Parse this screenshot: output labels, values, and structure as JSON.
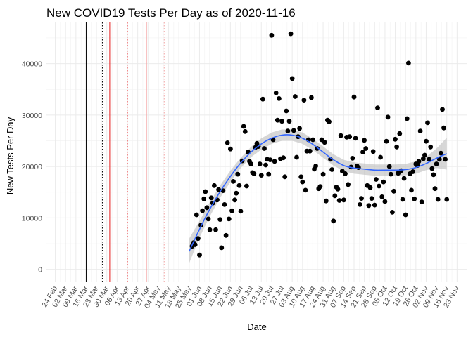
{
  "chart_data": {
    "type": "scatter",
    "title": "New COVID19 Tests Per Day as of 2020-11-16",
    "xlabel": "Date",
    "ylabel": "New Tests Per Day",
    "xlim": [
      "2020-02-18",
      "2020-11-30"
    ],
    "ylim": [
      -2500,
      48000
    ],
    "grid": true,
    "x_ticks": [
      "2020-02-24",
      "2020-03-02",
      "2020-03-09",
      "2020-03-16",
      "2020-03-23",
      "2020-03-30",
      "2020-04-06",
      "2020-04-13",
      "2020-04-20",
      "2020-04-27",
      "2020-05-04",
      "2020-05-11",
      "2020-05-18",
      "2020-05-25",
      "2020-06-01",
      "2020-06-08",
      "2020-06-15",
      "2020-06-22",
      "2020-06-29",
      "2020-07-06",
      "2020-07-13",
      "2020-07-20",
      "2020-07-27",
      "2020-08-03",
      "2020-08-10",
      "2020-08-17",
      "2020-08-24",
      "2020-08-31",
      "2020-09-07",
      "2020-09-14",
      "2020-09-21",
      "2020-09-28",
      "2020-10-05",
      "2020-10-12",
      "2020-10-19",
      "2020-10-26",
      "2020-11-02",
      "2020-11-09",
      "2020-11-16",
      "2020-11-23"
    ],
    "x_tick_labels": [
      "24 Feb",
      "02 Mar",
      "09 Mar",
      "16 Mar",
      "23 Mar",
      "30 Mar",
      "06 Apr",
      "13 Apr",
      "20 Apr",
      "27 Apr",
      "04 May",
      "11 May",
      "18 May",
      "25 May",
      "01 Jun",
      "08 Jun",
      "15 Jun",
      "22 Jun",
      "29 Jun",
      "06 Jul",
      "13 Jul",
      "20 Jul",
      "27 Jul",
      "03 Aug",
      "10 Aug",
      "17 Aug",
      "24 Aug",
      "31 Aug",
      "07 Sep",
      "14 Sep",
      "21 Sep",
      "28 Sep",
      "05 Oct",
      "12 Oct",
      "19 Oct",
      "26 Oct",
      "02 Nov",
      "09 Nov",
      "16 Nov",
      "23 Nov"
    ],
    "y_ticks": [
      0,
      10000,
      20000,
      30000,
      40000
    ],
    "y_tick_labels": [
      "0",
      "10000",
      "20000",
      "30000",
      "40000"
    ],
    "vlines": [
      {
        "date": "2020-03-16",
        "color": "#000000",
        "style": "solid"
      },
      {
        "date": "2020-03-27",
        "color": "#000000",
        "style": "dotted"
      },
      {
        "date": "2020-04-01",
        "color": "#e41a1c",
        "style": "solid"
      },
      {
        "date": "2020-04-13",
        "color": "#e41a1c",
        "style": "dotted"
      },
      {
        "date": "2020-04-26",
        "color": "#f4a6a6",
        "style": "solid"
      },
      {
        "date": "2020-05-08",
        "color": "#f4a6a6",
        "style": "dotted"
      }
    ],
    "series": [
      {
        "points": [
          [
            "2020-05-27",
            4500
          ],
          [
            "2020-05-28",
            5200
          ],
          [
            "2020-05-29",
            4800
          ],
          [
            "2020-05-30",
            10600
          ],
          [
            "2020-05-31",
            6000
          ],
          [
            "2020-06-01",
            2800
          ],
          [
            "2020-06-02",
            8600
          ],
          [
            "2020-06-03",
            11400
          ],
          [
            "2020-06-04",
            13700
          ],
          [
            "2020-06-05",
            15100
          ],
          [
            "2020-06-06",
            12000
          ],
          [
            "2020-06-07",
            9800
          ],
          [
            "2020-06-08",
            7700
          ],
          [
            "2020-06-09",
            13900
          ],
          [
            "2020-06-10",
            12900
          ],
          [
            "2020-06-11",
            16300
          ],
          [
            "2020-06-12",
            7700
          ],
          [
            "2020-06-13",
            13500
          ],
          [
            "2020-06-14",
            15500
          ],
          [
            "2020-06-15",
            9700
          ],
          [
            "2020-06-16",
            4200
          ],
          [
            "2020-06-17",
            15300
          ],
          [
            "2020-06-18",
            12600
          ],
          [
            "2020-06-19",
            6600
          ],
          [
            "2020-06-20",
            24600
          ],
          [
            "2020-06-21",
            9800
          ],
          [
            "2020-06-22",
            23400
          ],
          [
            "2020-06-23",
            11400
          ],
          [
            "2020-06-24",
            17100
          ],
          [
            "2020-06-25",
            13500
          ],
          [
            "2020-06-26",
            14800
          ],
          [
            "2020-06-27",
            18500
          ],
          [
            "2020-06-28",
            16300
          ],
          [
            "2020-06-29",
            11300
          ],
          [
            "2020-06-30",
            21100
          ],
          [
            "2020-07-01",
            27800
          ],
          [
            "2020-07-02",
            26800
          ],
          [
            "2020-07-03",
            16200
          ],
          [
            "2020-07-04",
            22800
          ],
          [
            "2020-07-05",
            21000
          ],
          [
            "2020-07-06",
            20500
          ],
          [
            "2020-07-07",
            18800
          ],
          [
            "2020-07-08",
            18600
          ],
          [
            "2020-07-09",
            23700
          ],
          [
            "2020-07-10",
            24500
          ],
          [
            "2020-07-11",
            23900
          ],
          [
            "2020-07-12",
            20500
          ],
          [
            "2020-07-13",
            18300
          ],
          [
            "2020-07-14",
            33100
          ],
          [
            "2020-07-15",
            23500
          ],
          [
            "2020-07-16",
            20300
          ],
          [
            "2020-07-17",
            21400
          ],
          [
            "2020-07-18",
            18500
          ],
          [
            "2020-07-19",
            21300
          ],
          [
            "2020-07-20",
            45500
          ],
          [
            "2020-07-21",
            25200
          ],
          [
            "2020-07-22",
            21000
          ],
          [
            "2020-07-23",
            34300
          ],
          [
            "2020-07-24",
            29000
          ],
          [
            "2020-07-25",
            33200
          ],
          [
            "2020-07-26",
            21500
          ],
          [
            "2020-07-27",
            28800
          ],
          [
            "2020-07-28",
            21700
          ],
          [
            "2020-07-29",
            18000
          ],
          [
            "2020-07-30",
            30800
          ],
          [
            "2020-07-31",
            26900
          ],
          [
            "2020-08-01",
            28800
          ],
          [
            "2020-08-02",
            45800
          ],
          [
            "2020-08-03",
            37100
          ],
          [
            "2020-08-04",
            27000
          ],
          [
            "2020-08-05",
            33600
          ],
          [
            "2020-08-06",
            21800
          ],
          [
            "2020-08-07",
            25800
          ],
          [
            "2020-08-08",
            27400
          ],
          [
            "2020-08-09",
            18000
          ],
          [
            "2020-08-10",
            17000
          ],
          [
            "2020-08-11",
            32900
          ],
          [
            "2020-08-12",
            15400
          ],
          [
            "2020-08-13",
            23000
          ],
          [
            "2020-08-14",
            25200
          ],
          [
            "2020-08-15",
            23000
          ],
          [
            "2020-08-16",
            33400
          ],
          [
            "2020-08-17",
            25200
          ],
          [
            "2020-08-18",
            19500
          ],
          [
            "2020-08-19",
            20100
          ],
          [
            "2020-08-20",
            23500
          ],
          [
            "2020-08-21",
            15700
          ],
          [
            "2020-08-22",
            16100
          ],
          [
            "2020-08-23",
            25200
          ],
          [
            "2020-08-24",
            18500
          ],
          [
            "2020-08-25",
            24700
          ],
          [
            "2020-08-26",
            13300
          ],
          [
            "2020-08-27",
            29000
          ],
          [
            "2020-08-28",
            28700
          ],
          [
            "2020-08-29",
            21400
          ],
          [
            "2020-08-30",
            19400
          ],
          [
            "2020-08-31",
            9400
          ],
          [
            "2020-09-01",
            14300
          ],
          [
            "2020-09-02",
            16000
          ],
          [
            "2020-09-03",
            15600
          ],
          [
            "2020-09-04",
            13400
          ],
          [
            "2020-09-05",
            26000
          ],
          [
            "2020-09-06",
            19100
          ],
          [
            "2020-09-07",
            13500
          ],
          [
            "2020-09-08",
            18600
          ],
          [
            "2020-09-09",
            25700
          ],
          [
            "2020-09-10",
            16500
          ],
          [
            "2020-09-11",
            25800
          ],
          [
            "2020-09-12",
            19900
          ],
          [
            "2020-09-13",
            21600
          ],
          [
            "2020-09-14",
            33500
          ],
          [
            "2020-09-15",
            25500
          ],
          [
            "2020-09-16",
            20100
          ],
          [
            "2020-09-17",
            19800
          ],
          [
            "2020-09-18",
            12600
          ],
          [
            "2020-09-19",
            13800
          ],
          [
            "2020-09-20",
            22800
          ],
          [
            "2020-09-21",
            25100
          ],
          [
            "2020-09-22",
            23500
          ],
          [
            "2020-09-23",
            16300
          ],
          [
            "2020-09-24",
            12400
          ],
          [
            "2020-09-25",
            15900
          ],
          [
            "2020-09-26",
            13800
          ],
          [
            "2020-09-27",
            22900
          ],
          [
            "2020-09-28",
            12500
          ],
          [
            "2020-09-29",
            17500
          ],
          [
            "2020-09-30",
            31400
          ],
          [
            "2020-10-01",
            16200
          ],
          [
            "2020-10-02",
            21800
          ],
          [
            "2020-10-03",
            14100
          ],
          [
            "2020-10-04",
            17000
          ],
          [
            "2020-10-05",
            13200
          ],
          [
            "2020-10-06",
            24900
          ],
          [
            "2020-10-07",
            29600
          ],
          [
            "2020-10-08",
            20000
          ],
          [
            "2020-10-09",
            18500
          ],
          [
            "2020-10-10",
            11100
          ],
          [
            "2020-10-11",
            15200
          ],
          [
            "2020-10-12",
            25300
          ],
          [
            "2020-10-13",
            23800
          ],
          [
            "2020-10-14",
            18700
          ],
          [
            "2020-10-15",
            26400
          ],
          [
            "2020-10-16",
            19200
          ],
          [
            "2020-10-17",
            13600
          ],
          [
            "2020-10-18",
            17700
          ],
          [
            "2020-10-19",
            10600
          ],
          [
            "2020-10-20",
            29300
          ],
          [
            "2020-10-21",
            40100
          ],
          [
            "2020-10-22",
            18600
          ],
          [
            "2020-10-23",
            15400
          ],
          [
            "2020-10-24",
            19000
          ],
          [
            "2020-10-25",
            13700
          ],
          [
            "2020-10-26",
            20500
          ],
          [
            "2020-10-27",
            20200
          ],
          [
            "2020-10-28",
            21000
          ],
          [
            "2020-10-29",
            26900
          ],
          [
            "2020-10-30",
            13100
          ],
          [
            "2020-10-31",
            21500
          ],
          [
            "2020-11-01",
            22200
          ],
          [
            "2020-11-02",
            24900
          ],
          [
            "2020-11-03",
            28500
          ],
          [
            "2020-11-04",
            21400
          ],
          [
            "2020-11-05",
            23800
          ],
          [
            "2020-11-06",
            19600
          ],
          [
            "2020-11-07",
            18400
          ],
          [
            "2020-11-08",
            15700
          ],
          [
            "2020-11-09",
            20500
          ],
          [
            "2020-11-10",
            13600
          ],
          [
            "2020-11-11",
            21400
          ],
          [
            "2020-11-12",
            22600
          ],
          [
            "2020-11-13",
            31100
          ],
          [
            "2020-11-14",
            27500
          ],
          [
            "2020-11-15",
            21400
          ],
          [
            "2020-11-16",
            13600
          ]
        ],
        "smooth": [
          [
            "2020-05-25",
            3500,
            1200,
            6000
          ],
          [
            "2020-06-01",
            7800,
            6200,
            9400
          ],
          [
            "2020-06-08",
            11700,
            10300,
            13100
          ],
          [
            "2020-06-15",
            15100,
            13900,
            16300
          ],
          [
            "2020-06-22",
            18100,
            17000,
            19200
          ],
          [
            "2020-06-29",
            20700,
            19700,
            21700
          ],
          [
            "2020-07-06",
            22800,
            21800,
            23800
          ],
          [
            "2020-07-13",
            24400,
            23300,
            25500
          ],
          [
            "2020-07-20",
            25500,
            24400,
            26600
          ],
          [
            "2020-07-27",
            26100,
            25000,
            27200
          ],
          [
            "2020-08-03",
            26100,
            25000,
            27200
          ],
          [
            "2020-08-10",
            25500,
            24400,
            26600
          ],
          [
            "2020-08-17",
            24300,
            23200,
            25400
          ],
          [
            "2020-08-24",
            22800,
            21700,
            23900
          ],
          [
            "2020-08-31",
            21300,
            20200,
            22400
          ],
          [
            "2020-09-07",
            20200,
            19100,
            21300
          ],
          [
            "2020-09-14",
            19700,
            18600,
            20800
          ],
          [
            "2020-09-21",
            19500,
            18400,
            20600
          ],
          [
            "2020-09-28",
            19300,
            18200,
            20400
          ],
          [
            "2020-10-05",
            19300,
            18200,
            20400
          ],
          [
            "2020-10-12",
            19300,
            18200,
            20400
          ],
          [
            "2020-10-19",
            19400,
            18300,
            20500
          ],
          [
            "2020-10-26",
            19800,
            18600,
            21000
          ],
          [
            "2020-11-02",
            20600,
            19300,
            21900
          ],
          [
            "2020-11-09",
            21600,
            19700,
            23500
          ],
          [
            "2020-11-16",
            22500,
            19400,
            25600
          ]
        ],
        "point_color": "#000000",
        "smooth_color": "#3366FF",
        "band_color": "#bdbdbd"
      }
    ]
  }
}
